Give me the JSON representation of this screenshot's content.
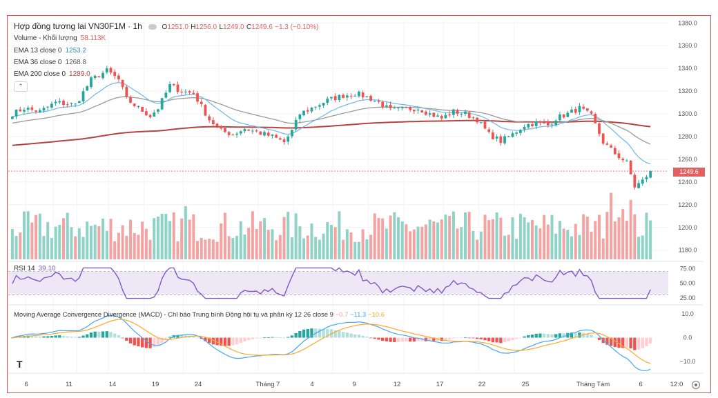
{
  "header": {
    "symbol_title": "Hợp đồng tương lai VN30F1M · 1h",
    "o_label": "O",
    "o_value": "1251.0",
    "h_label": "H",
    "h_value": "1256.0",
    "l_label": "L",
    "l_value": "1249.0",
    "c_label": "C",
    "c_value": "1249.6",
    "change": "−1.3 (−0.10%)"
  },
  "legends": {
    "volume_label": "Volume - Khối lượng",
    "volume_value": "58.113K",
    "ema13_label": "EMA 13 close 0",
    "ema13_value": "1253.2",
    "ema36_label": "EMA 36 close 0",
    "ema36_value": "1268.8",
    "ema200_label": "EMA 200 close 0",
    "ema200_value": "1289.0",
    "rsi_label": "RSI 14",
    "rsi_value": "39.10",
    "macd_label": "Moving Average Convergence Divergence (MACD) - Chỉ báo Trung bình Động hội tụ và phân kỳ 12 26 close 9",
    "macd_v1": "−0.7",
    "macd_v2": "−11.3",
    "macd_v3": "−10.6"
  },
  "last_price_badge": "1249.6",
  "collapse_icon": "chevron-up-icon",
  "logo_text": "T",
  "colors": {
    "up": "#26a69a",
    "down": "#ef5350",
    "vol_up": "#8fd3c7",
    "vol_down": "#f4a3a3",
    "ema13": "#6fb5e8",
    "ema36": "#9a9a9a",
    "ema200": "#b5433f",
    "rsi": "#7e57c2",
    "rsi_band": "#ede7f6",
    "macd": "#42a5f5",
    "signal": "#ffa726",
    "hist_up_strong": "#26a69a",
    "hist_up_weak": "#b2dfdb",
    "hist_down_strong": "#ef5350",
    "hist_down_weak": "#ffcdd2",
    "frame": "#d9534f"
  },
  "chart_data": [
    {
      "type": "candlestick",
      "title": "Hợp đồng tương lai VN30F1M · 1h",
      "yticks": [
        "1380.0",
        "1360.0",
        "1340.0",
        "1320.0",
        "1300.0",
        "1280.0",
        "1260.0",
        "1240.0",
        "1220.0",
        "1200.0",
        "1180.0"
      ],
      "ylim": [
        1178,
        1382
      ],
      "xticks": [
        "6",
        "11",
        "14",
        "19",
        "24",
        "Tháng 7",
        "4",
        "9",
        "12",
        "17",
        "22",
        "25",
        "Tháng Tám",
        "6",
        "12:0"
      ],
      "anchors": [
        [
          0,
          1300
        ],
        [
          3,
          1305
        ],
        [
          7,
          1302
        ],
        [
          11,
          1310
        ],
        [
          16,
          1308
        ],
        [
          20,
          1330
        ],
        [
          24,
          1338
        ],
        [
          27,
          1330
        ],
        [
          29,
          1313
        ],
        [
          32,
          1305
        ],
        [
          35,
          1298
        ],
        [
          37,
          1305
        ],
        [
          40,
          1325
        ],
        [
          43,
          1320
        ],
        [
          46,
          1318
        ],
        [
          50,
          1295
        ],
        [
          53,
          1285
        ],
        [
          56,
          1282
        ],
        [
          59,
          1287
        ],
        [
          62,
          1284
        ],
        [
          66,
          1280
        ],
        [
          69,
          1275
        ],
        [
          71,
          1285
        ],
        [
          73,
          1300
        ],
        [
          76,
          1305
        ],
        [
          80,
          1312
        ],
        [
          84,
          1316
        ],
        [
          87,
          1318
        ],
        [
          90,
          1315
        ],
        [
          93,
          1310
        ],
        [
          96,
          1303
        ],
        [
          99,
          1304
        ],
        [
          103,
          1305
        ],
        [
          106,
          1300
        ],
        [
          109,
          1296
        ],
        [
          112,
          1302
        ],
        [
          115,
          1300
        ],
        [
          118,
          1295
        ],
        [
          121,
          1282
        ],
        [
          124,
          1276
        ],
        [
          127,
          1282
        ],
        [
          130,
          1290
        ],
        [
          133,
          1292
        ],
        [
          136,
          1290
        ],
        [
          138,
          1296
        ],
        [
          141,
          1300
        ],
        [
          144,
          1305
        ],
        [
          147,
          1298
        ],
        [
          150,
          1275
        ],
        [
          153,
          1265
        ],
        [
          156,
          1257
        ],
        [
          158,
          1236
        ],
        [
          160,
          1241
        ],
        [
          162,
          1249.6
        ]
      ],
      "n_candles": 163
    },
    {
      "type": "bar",
      "series": [
        {
          "name": "Volume - Khối lượng",
          "last_value": "58.113K"
        }
      ]
    },
    {
      "type": "line",
      "series": [
        {
          "name": "RSI 14",
          "last_value": 39.1
        }
      ],
      "yticks": [
        "75.00",
        "50.00",
        "25.00"
      ],
      "ylim": [
        20,
        80
      ],
      "band": [
        30,
        70
      ]
    },
    {
      "type": "line",
      "series": [
        {
          "name": "MACD",
          "last_value": -11.3
        },
        {
          "name": "Signal",
          "last_value": -10.6
        },
        {
          "name": "Histogram",
          "last_value": -0.7
        }
      ],
      "yticks": [
        "10.0",
        "0.0",
        "−10.0"
      ],
      "ylim": [
        -14,
        12
      ]
    }
  ]
}
